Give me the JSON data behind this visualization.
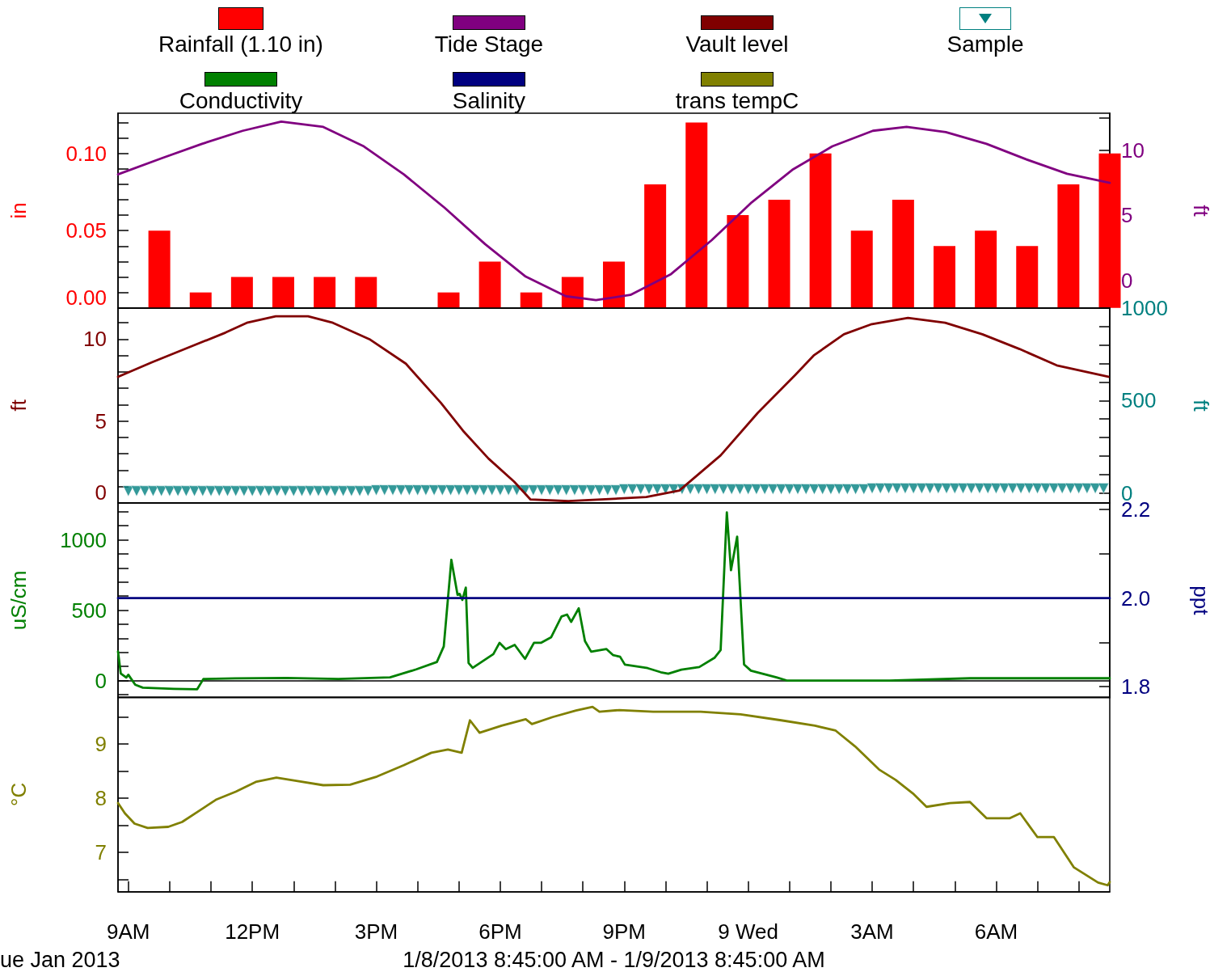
{
  "chart_data": [
    {
      "type": "bar",
      "legend": "top",
      "tick_labels": "y",
      "marker": "none",
      "ylabel": "in",
      "y2label": "ft",
      "xlim": [
        "2013-01-08T08:45",
        "2013-01-09T08:45"
      ],
      "ylim": [
        0,
        0.126
      ],
      "yticks": [
        {
          "value": 0,
          "label": "0.00"
        },
        {
          "value": 0.01,
          "label": null
        },
        {
          "value": 0.02,
          "label": null
        },
        {
          "value": 0.03,
          "label": null
        },
        {
          "value": 0.04,
          "label": null
        },
        {
          "value": 0.05,
          "label": "0.05"
        },
        {
          "value": 0.06,
          "label": null
        },
        {
          "value": 0.07,
          "label": null
        },
        {
          "value": 0.08,
          "label": null
        },
        {
          "value": 0.09,
          "label": null
        },
        {
          "value": 0.1,
          "label": "0.10"
        },
        {
          "value": 0.11,
          "label": null
        },
        {
          "value": 0.12,
          "label": null
        }
      ],
      "y2lim": [
        -2.1,
        12.85
      ],
      "y2ticks": [
        0,
        {
          "value": 2.5,
          "label": null
        },
        5,
        {
          "value": 7.5,
          "label": null
        },
        10,
        {
          "value": 12.5,
          "label": null
        }
      ],
      "x": [
        "2013-01-08T09:45",
        "2013-01-08T10:45",
        "2013-01-08T11:45",
        "2013-01-08T12:45",
        "2013-01-08T13:45",
        "2013-01-08T14:45",
        "2013-01-08T15:45",
        "2013-01-08T16:45",
        "2013-01-08T17:45",
        "2013-01-08T18:45",
        "2013-01-08T19:45",
        "2013-01-08T20:45",
        "2013-01-08T21:45",
        "2013-01-08T22:45",
        "2013-01-08T23:45",
        "2013-01-09T00:45",
        "2013-01-09T01:45",
        "2013-01-09T02:45",
        "2013-01-09T03:45",
        "2013-01-09T04:45",
        "2013-01-09T05:45",
        "2013-01-09T06:45",
        "2013-01-09T07:45",
        "2013-01-09T08:45"
      ],
      "series": [
        {
          "name": "Rainfall (1.10 in)",
          "color": "#ff0000",
          "values": [
            0.05,
            0.01,
            0.02,
            0.02,
            0.02,
            0.02,
            0,
            0.01,
            0.03,
            0.01,
            0.02,
            0.03,
            0.08,
            0.12,
            0.06,
            0.07,
            0.1,
            0.05,
            0.07,
            0.04,
            0.05,
            0.04,
            0.08,
            0.1
          ]
        },
        {
          "name": "Tide Stage",
          "type": "line",
          "axis": "y2",
          "color": "#800080",
          "x": [
            "2013-01-08T08:45",
            "2013-01-08T09:49",
            "2013-01-08T10:47",
            "2013-01-08T11:46",
            "2013-01-08T12:42",
            "2013-01-08T13:43",
            "2013-01-08T14:42",
            "2013-01-08T15:40",
            "2013-01-08T16:39",
            "2013-01-08T17:38",
            "2013-01-08T18:37",
            "2013-01-08T19:35",
            "2013-01-08T20:19",
            "2013-01-08T21:09",
            "2013-01-08T22:08",
            "2013-01-08T23:07",
            "2013-01-09T00:05",
            "2013-01-09T01:04",
            "2013-01-09T02:02",
            "2013-01-09T03:01",
            "2013-01-09T03:50",
            "2013-01-09T04:47",
            "2013-01-09T05:46",
            "2013-01-09T06:44",
            "2013-01-09T07:43",
            "2013-01-09T08:45"
          ],
          "values": [
            8.15,
            9.4,
            10.5,
            11.5,
            12.2,
            11.8,
            10.3,
            8.15,
            5.6,
            2.8,
            0.3,
            -1.2,
            -1.5,
            -1.1,
            0.5,
            3.1,
            6.0,
            8.5,
            10.3,
            11.5,
            11.8,
            11.4,
            10.5,
            9.3,
            8.2,
            7.5
          ]
        }
      ]
    },
    {
      "type": "line",
      "legend": "top",
      "tick_labels": "y",
      "marker": "none",
      "ylabel": "ft",
      "y2label": "ft",
      "xlim": [
        "2013-01-08T08:45",
        "2013-01-09T08:45"
      ],
      "ylim": [
        0,
        11.9
      ],
      "yticks": [
        {
          "value": 0,
          "label": "0"
        },
        {
          "value": 1,
          "label": null
        },
        {
          "value": 2,
          "label": null
        },
        {
          "value": 3,
          "label": null
        },
        {
          "value": 4,
          "label": null
        },
        5,
        {
          "value": 6,
          "label": null
        },
        {
          "value": 7,
          "label": null
        },
        {
          "value": 8,
          "label": null
        },
        {
          "value": 9,
          "label": null
        },
        10,
        {
          "value": 11,
          "label": null
        }
      ],
      "y2lim": [
        -53,
        1000
      ],
      "y2ticks": [
        0,
        {
          "value": 100,
          "label": null
        },
        {
          "value": 200,
          "label": null
        },
        {
          "value": 300,
          "label": null
        },
        {
          "value": 400,
          "label": null
        },
        500,
        {
          "value": 600,
          "label": null
        },
        {
          "value": 700,
          "label": null
        },
        {
          "value": 800,
          "label": null
        },
        {
          "value": 900,
          "label": null
        },
        1000
      ],
      "series": [
        {
          "name": "Vault level",
          "color": "#800000",
          "x": [
            "2013-01-08T08:45",
            "2013-01-08T09:35",
            "2013-01-08T10:28",
            "2013-01-08T11:21",
            "2013-01-08T11:52",
            "2013-01-08T12:34",
            "2013-01-08T13:21",
            "2013-01-08T13:57",
            "2013-01-08T14:50",
            "2013-01-08T15:43",
            "2013-01-08T16:34",
            "2013-01-08T17:06",
            "2013-01-08T17:43",
            "2013-01-08T18:20",
            "2013-01-08T18:44",
            "2013-01-08T19:39",
            "2013-01-08T21:32",
            "2013-01-08T22:20",
            "2013-01-08T23:20",
            "2013-01-09T00:14",
            "2013-01-09T01:08",
            "2013-01-09T01:35",
            "2013-01-09T02:19",
            "2013-01-09T02:58",
            "2013-01-09T03:52",
            "2013-01-09T04:46",
            "2013-01-09T05:40",
            "2013-01-09T06:34",
            "2013-01-09T07:28",
            "2013-01-09T08:43"
          ],
          "values": [
            7.7,
            8.6,
            9.5,
            10.4,
            11.0,
            11.4,
            11.4,
            11.0,
            10.0,
            8.5,
            6.1,
            4.4,
            2.7,
            1.3,
            0.2,
            0.1,
            0.35,
            0.75,
            2.9,
            5.5,
            7.8,
            9.0,
            10.3,
            10.9,
            11.3,
            11.0,
            10.3,
            9.4,
            8.4,
            7.7
          ]
        },
        {
          "name": "Sample",
          "type": "scatter",
          "axis": "y2",
          "marker": "triangle",
          "color": "#008080",
          "x": [
            "2013-01-08T09:00",
            "2013-01-08T09:12",
            "2013-01-08T09:24",
            "2013-01-08T09:36",
            "2013-01-08T09:48",
            "2013-01-08T10:00",
            "2013-01-08T10:12",
            "2013-01-08T10:24",
            "2013-01-08T10:36",
            "2013-01-08T10:48",
            "2013-01-08T11:00",
            "2013-01-08T11:12",
            "2013-01-08T11:24",
            "2013-01-08T11:36",
            "2013-01-08T11:48",
            "2013-01-08T12:00",
            "2013-01-08T12:12",
            "2013-01-08T12:24",
            "2013-01-08T12:36",
            "2013-01-08T12:48",
            "2013-01-08T13:00",
            "2013-01-08T13:12",
            "2013-01-08T13:24",
            "2013-01-08T13:36",
            "2013-01-08T13:48",
            "2013-01-08T14:00",
            "2013-01-08T14:12",
            "2013-01-08T14:24",
            "2013-01-08T14:36",
            "2013-01-08T14:48",
            "2013-01-08T15:00",
            "2013-01-08T15:12",
            "2013-01-08T15:24",
            "2013-01-08T15:36",
            "2013-01-08T15:48",
            "2013-01-08T16:00",
            "2013-01-08T16:12",
            "2013-01-08T16:24",
            "2013-01-08T16:36",
            "2013-01-08T16:48",
            "2013-01-08T17:00",
            "2013-01-08T17:12",
            "2013-01-08T17:24",
            "2013-01-08T17:36",
            "2013-01-08T17:48",
            "2013-01-08T18:00",
            "2013-01-08T18:12",
            "2013-01-08T18:24",
            "2013-01-08T18:36",
            "2013-01-08T18:48",
            "2013-01-08T19:00",
            "2013-01-08T19:12",
            "2013-01-08T19:24",
            "2013-01-08T19:36",
            "2013-01-08T19:48",
            "2013-01-08T20:00",
            "2013-01-08T20:12",
            "2013-01-08T20:24",
            "2013-01-08T20:36",
            "2013-01-08T20:48",
            "2013-01-08T21:00",
            "2013-01-08T21:12",
            "2013-01-08T21:24",
            "2013-01-08T21:36",
            "2013-01-08T21:48",
            "2013-01-08T22:00",
            "2013-01-08T22:12",
            "2013-01-08T22:24",
            "2013-01-08T22:36",
            "2013-01-08T22:48",
            "2013-01-08T23:00",
            "2013-01-08T23:12",
            "2013-01-08T23:24",
            "2013-01-08T23:36",
            "2013-01-08T23:48",
            "2013-01-09T00:00",
            "2013-01-09T00:12",
            "2013-01-09T00:24",
            "2013-01-09T00:36",
            "2013-01-09T00:48",
            "2013-01-09T01:00",
            "2013-01-09T01:12",
            "2013-01-09T01:24",
            "2013-01-09T01:36",
            "2013-01-09T01:48",
            "2013-01-09T02:00",
            "2013-01-09T02:12",
            "2013-01-09T02:24",
            "2013-01-09T02:36",
            "2013-01-09T02:48",
            "2013-01-09T03:00",
            "2013-01-09T03:12",
            "2013-01-09T03:24",
            "2013-01-09T03:36",
            "2013-01-09T03:48",
            "2013-01-09T04:00",
            "2013-01-09T04:12",
            "2013-01-09T04:24",
            "2013-01-09T04:36",
            "2013-01-09T04:48",
            "2013-01-09T05:00",
            "2013-01-09T05:12",
            "2013-01-09T05:24",
            "2013-01-09T05:36",
            "2013-01-09T05:48",
            "2013-01-09T06:00",
            "2013-01-09T06:12",
            "2013-01-09T06:24",
            "2013-01-09T06:36",
            "2013-01-09T06:48",
            "2013-01-09T07:00",
            "2013-01-09T07:12",
            "2013-01-09T07:24",
            "2013-01-09T07:36",
            "2013-01-09T07:48",
            "2013-01-09T08:00",
            "2013-01-09T08:12",
            "2013-01-09T08:24",
            "2013-01-09T08:36"
          ],
          "values": [
            10,
            10,
            10,
            10,
            10,
            10,
            10,
            10,
            10,
            10,
            10,
            10,
            10,
            10,
            10,
            10,
            10,
            10,
            10,
            10,
            10,
            10,
            10,
            10,
            10,
            10,
            10,
            10,
            10,
            10,
            15,
            15,
            15,
            15,
            15,
            15,
            15,
            15,
            15,
            15,
            15,
            15,
            15,
            15,
            15,
            15,
            15,
            15,
            15,
            15,
            15,
            15,
            15,
            15,
            15,
            15,
            15,
            15,
            15,
            15,
            20,
            20,
            20,
            20,
            20,
            20,
            20,
            20,
            20,
            20,
            20,
            20,
            20,
            20,
            20,
            20,
            20,
            20,
            20,
            20,
            20,
            20,
            20,
            20,
            20,
            20,
            20,
            20,
            20,
            20,
            25,
            25,
            25,
            25,
            25,
            25,
            25,
            25,
            25,
            25,
            25,
            25,
            25,
            25,
            25,
            25,
            25,
            25,
            25,
            25,
            25,
            25,
            25,
            25,
            25,
            25,
            25,
            25,
            25
          ]
        }
      ]
    },
    {
      "type": "line",
      "legend": "top",
      "tick_labels": "y",
      "marker": "none",
      "ylabel": "uS/cm",
      "y2label": "ppt",
      "xlim": [
        "2013-01-08T08:45",
        "2013-01-09T08:45"
      ],
      "ylim": [
        -122,
        1262
      ],
      "yticks": [
        {
          "value": -100,
          "label": null
        },
        0,
        {
          "value": 100,
          "label": null
        },
        {
          "value": 200,
          "label": null
        },
        {
          "value": 300,
          "label": null
        },
        {
          "value": 400,
          "label": null
        },
        500,
        {
          "value": 600,
          "label": null
        },
        {
          "value": 700,
          "label": null
        },
        {
          "value": 800,
          "label": null
        },
        {
          "value": 900,
          "label": null
        },
        1000,
        {
          "value": 1100,
          "label": null
        },
        {
          "value": 1200,
          "label": null
        }
      ],
      "y2lim": [
        1.775,
        2.215
      ],
      "y2ticks": [
        1.8,
        {
          "value": 1.9,
          "label": null
        },
        {
          "value": 2.0,
          "label": "2.0"
        },
        {
          "value": 2.1,
          "label": null
        },
        2.2
      ],
      "series": [
        {
          "name": "Conductivity",
          "color": "#008000",
          "x": [
            "2013-01-08T08:45",
            "2013-01-08T08:49",
            "2013-01-08T08:57",
            "2013-01-08T09:00",
            "2013-01-08T09:10",
            "2013-01-08T09:21",
            "2013-01-08T10:06",
            "2013-01-08T10:40",
            "2013-01-08T10:49",
            "2013-01-08T11:35",
            "2013-01-08T12:50",
            "2013-01-08T14:05",
            "2013-01-08T15:20",
            "2013-01-08T15:58",
            "2013-01-08T16:28",
            "2013-01-08T16:38",
            "2013-01-08T16:49",
            "2013-01-08T16:58",
            "2013-01-08T17:01",
            "2013-01-08T17:05",
            "2013-01-08T17:10",
            "2013-01-08T17:14",
            "2013-01-08T17:20",
            "2013-01-08T17:50",
            "2013-01-08T17:59",
            "2013-01-08T18:08",
            "2013-01-08T18:21",
            "2013-01-08T18:32",
            "2013-01-08T18:36",
            "2013-01-08T18:49",
            "2013-01-08T18:59",
            "2013-01-08T19:14",
            "2013-01-08T19:29",
            "2013-01-08T19:37",
            "2013-01-08T19:43",
            "2013-01-08T19:54",
            "2013-01-08T20:03",
            "2013-01-08T20:12",
            "2013-01-08T20:34",
            "2013-01-08T20:44",
            "2013-01-08T20:54",
            "2013-01-08T21:01",
            "2013-01-08T21:34",
            "2013-01-08T21:53",
            "2013-01-08T22:04",
            "2013-01-08T22:23",
            "2013-01-08T22:49",
            "2013-01-08T23:11",
            "2013-01-08T23:20",
            "2013-01-08T23:29",
            "2013-01-08T23:35",
            "2013-01-08T23:44",
            "2013-01-08T23:54",
            "2013-01-09T00:04",
            "2013-01-09T00:41",
            "2013-01-09T00:56",
            "2013-01-09T03:25",
            "2013-01-09T05:22",
            "2013-01-09T07:19",
            "2013-01-09T08:45"
          ],
          "values": [
            206,
            50,
            21,
            41,
            -30,
            -51,
            -59,
            -62,
            11,
            15,
            18,
            11,
            22,
            79,
            132,
            242,
            858,
            609,
            616,
            573,
            660,
            125,
            90,
            188,
            268,
            223,
            253,
            180,
            154,
            268,
            268,
            308,
            455,
            469,
            417,
            513,
            280,
            205,
            224,
            180,
            169,
            113,
            88,
            59,
            48,
            77,
            96,
            161,
            217,
            1195,
            784,
            1023,
            114,
            70,
            22,
            0,
            0,
            16,
            16,
            16
          ]
        },
        {
          "name": "Salinity",
          "axis": "y2",
          "color": "#000080",
          "x": [
            "2013-01-08T08:45",
            "2013-01-09T08:45"
          ],
          "values": [
            2.0,
            2.0
          ]
        }
      ]
    },
    {
      "type": "line",
      "legend": "top",
      "marker": "none",
      "ylabel": "°C",
      "xlim": [
        "2013-01-08T08:45",
        "2013-01-09T08:45"
      ],
      "xticks": [
        {
          "value": "2013-01-08T09:00",
          "label": "9AM"
        },
        {
          "value": "2013-01-08T10:00",
          "label": null
        },
        {
          "value": "2013-01-08T11:00",
          "label": null
        },
        {
          "value": "2013-01-08T12:00",
          "label": "12PM"
        },
        {
          "value": "2013-01-08T13:00",
          "label": null
        },
        {
          "value": "2013-01-08T14:00",
          "label": null
        },
        {
          "value": "2013-01-08T15:00",
          "label": "3PM"
        },
        {
          "value": "2013-01-08T16:00",
          "label": null
        },
        {
          "value": "2013-01-08T17:00",
          "label": null
        },
        {
          "value": "2013-01-08T18:00",
          "label": "6PM"
        },
        {
          "value": "2013-01-08T19:00",
          "label": null
        },
        {
          "value": "2013-01-08T20:00",
          "label": null
        },
        {
          "value": "2013-01-08T21:00",
          "label": "9PM"
        },
        {
          "value": "2013-01-08T22:00",
          "label": null
        },
        {
          "value": "2013-01-08T23:00",
          "label": null
        },
        {
          "value": "2013-01-09T00:00",
          "label": "9 Wed"
        },
        {
          "value": "2013-01-09T01:00",
          "label": null
        },
        {
          "value": "2013-01-09T02:00",
          "label": null
        },
        {
          "value": "2013-01-09T03:00",
          "label": "3AM"
        },
        {
          "value": "2013-01-09T04:00",
          "label": null
        },
        {
          "value": "2013-01-09T05:00",
          "label": null
        },
        {
          "value": "2013-01-09T06:00",
          "label": "6AM"
        },
        {
          "value": "2013-01-09T07:00",
          "label": null
        },
        {
          "value": "2013-01-09T08:00",
          "label": null
        }
      ],
      "ylim": [
        6.27,
        9.87
      ],
      "yticks": [
        {
          "value": 6.5,
          "label": null
        },
        7,
        {
          "value": 7.5,
          "label": null
        },
        8,
        {
          "value": 8.5,
          "label": null
        },
        9,
        {
          "value": 9.5,
          "label": null
        }
      ],
      "annotations": [
        "ue Jan 2013",
        "1/8/2013 8:45:00 AM - 1/9/2013 8:45:00 AM"
      ],
      "series": [
        {
          "name": "trans tempC",
          "color": "#808000",
          "x": [
            "2013-01-08T08:45",
            "2013-01-08T08:55",
            "2013-01-08T09:09",
            "2013-01-08T09:28",
            "2013-01-08T09:58",
            "2013-01-08T10:18",
            "2013-01-08T10:42",
            "2013-01-08T11:07",
            "2013-01-08T11:36",
            "2013-01-08T12:05",
            "2013-01-08T12:35",
            "2013-01-08T13:04",
            "2013-01-08T13:43",
            "2013-01-08T14:22",
            "2013-01-08T15:01",
            "2013-01-08T15:40",
            "2013-01-08T16:20",
            "2013-01-08T16:44",
            "2013-01-08T17:04",
            "2013-01-08T17:16",
            "2013-01-08T17:30",
            "2013-01-08T18:02",
            "2013-01-08T18:37",
            "2013-01-08T18:46",
            "2013-01-08T19:16",
            "2013-01-08T19:50",
            "2013-01-08T20:14",
            "2013-01-08T20:24",
            "2013-01-08T20:53",
            "2013-01-08T21:42",
            "2013-01-08T22:51",
            "2013-01-08T23:49",
            "2013-01-09T00:48",
            "2013-01-09T01:37",
            "2013-01-09T02:07",
            "2013-01-09T02:35",
            "2013-01-09T03:10",
            "2013-01-09T03:34",
            "2013-01-09T03:59",
            "2013-01-09T04:19",
            "2013-01-09T04:53",
            "2013-01-09T05:22",
            "2013-01-09T05:46",
            "2013-01-09T06:20",
            "2013-01-09T06:35",
            "2013-01-09T07:00",
            "2013-01-09T07:24",
            "2013-01-09T07:53",
            "2013-01-09T08:28",
            "2013-01-09T08:42",
            "2013-01-09T08:45"
          ],
          "values": [
            7.91,
            7.72,
            7.53,
            7.45,
            7.47,
            7.56,
            7.76,
            7.97,
            8.12,
            8.3,
            8.38,
            8.32,
            8.24,
            8.25,
            8.4,
            8.61,
            8.84,
            8.9,
            8.84,
            9.44,
            9.21,
            9.34,
            9.46,
            9.37,
            9.5,
            9.62,
            9.69,
            9.6,
            9.63,
            9.6,
            9.6,
            9.55,
            9.44,
            9.34,
            9.25,
            8.96,
            8.53,
            8.34,
            8.09,
            7.84,
            7.91,
            7.93,
            7.63,
            7.63,
            7.72,
            7.28,
            7.28,
            6.72,
            6.44,
            6.39,
            6.45
          ]
        }
      ]
    }
  ]
}
